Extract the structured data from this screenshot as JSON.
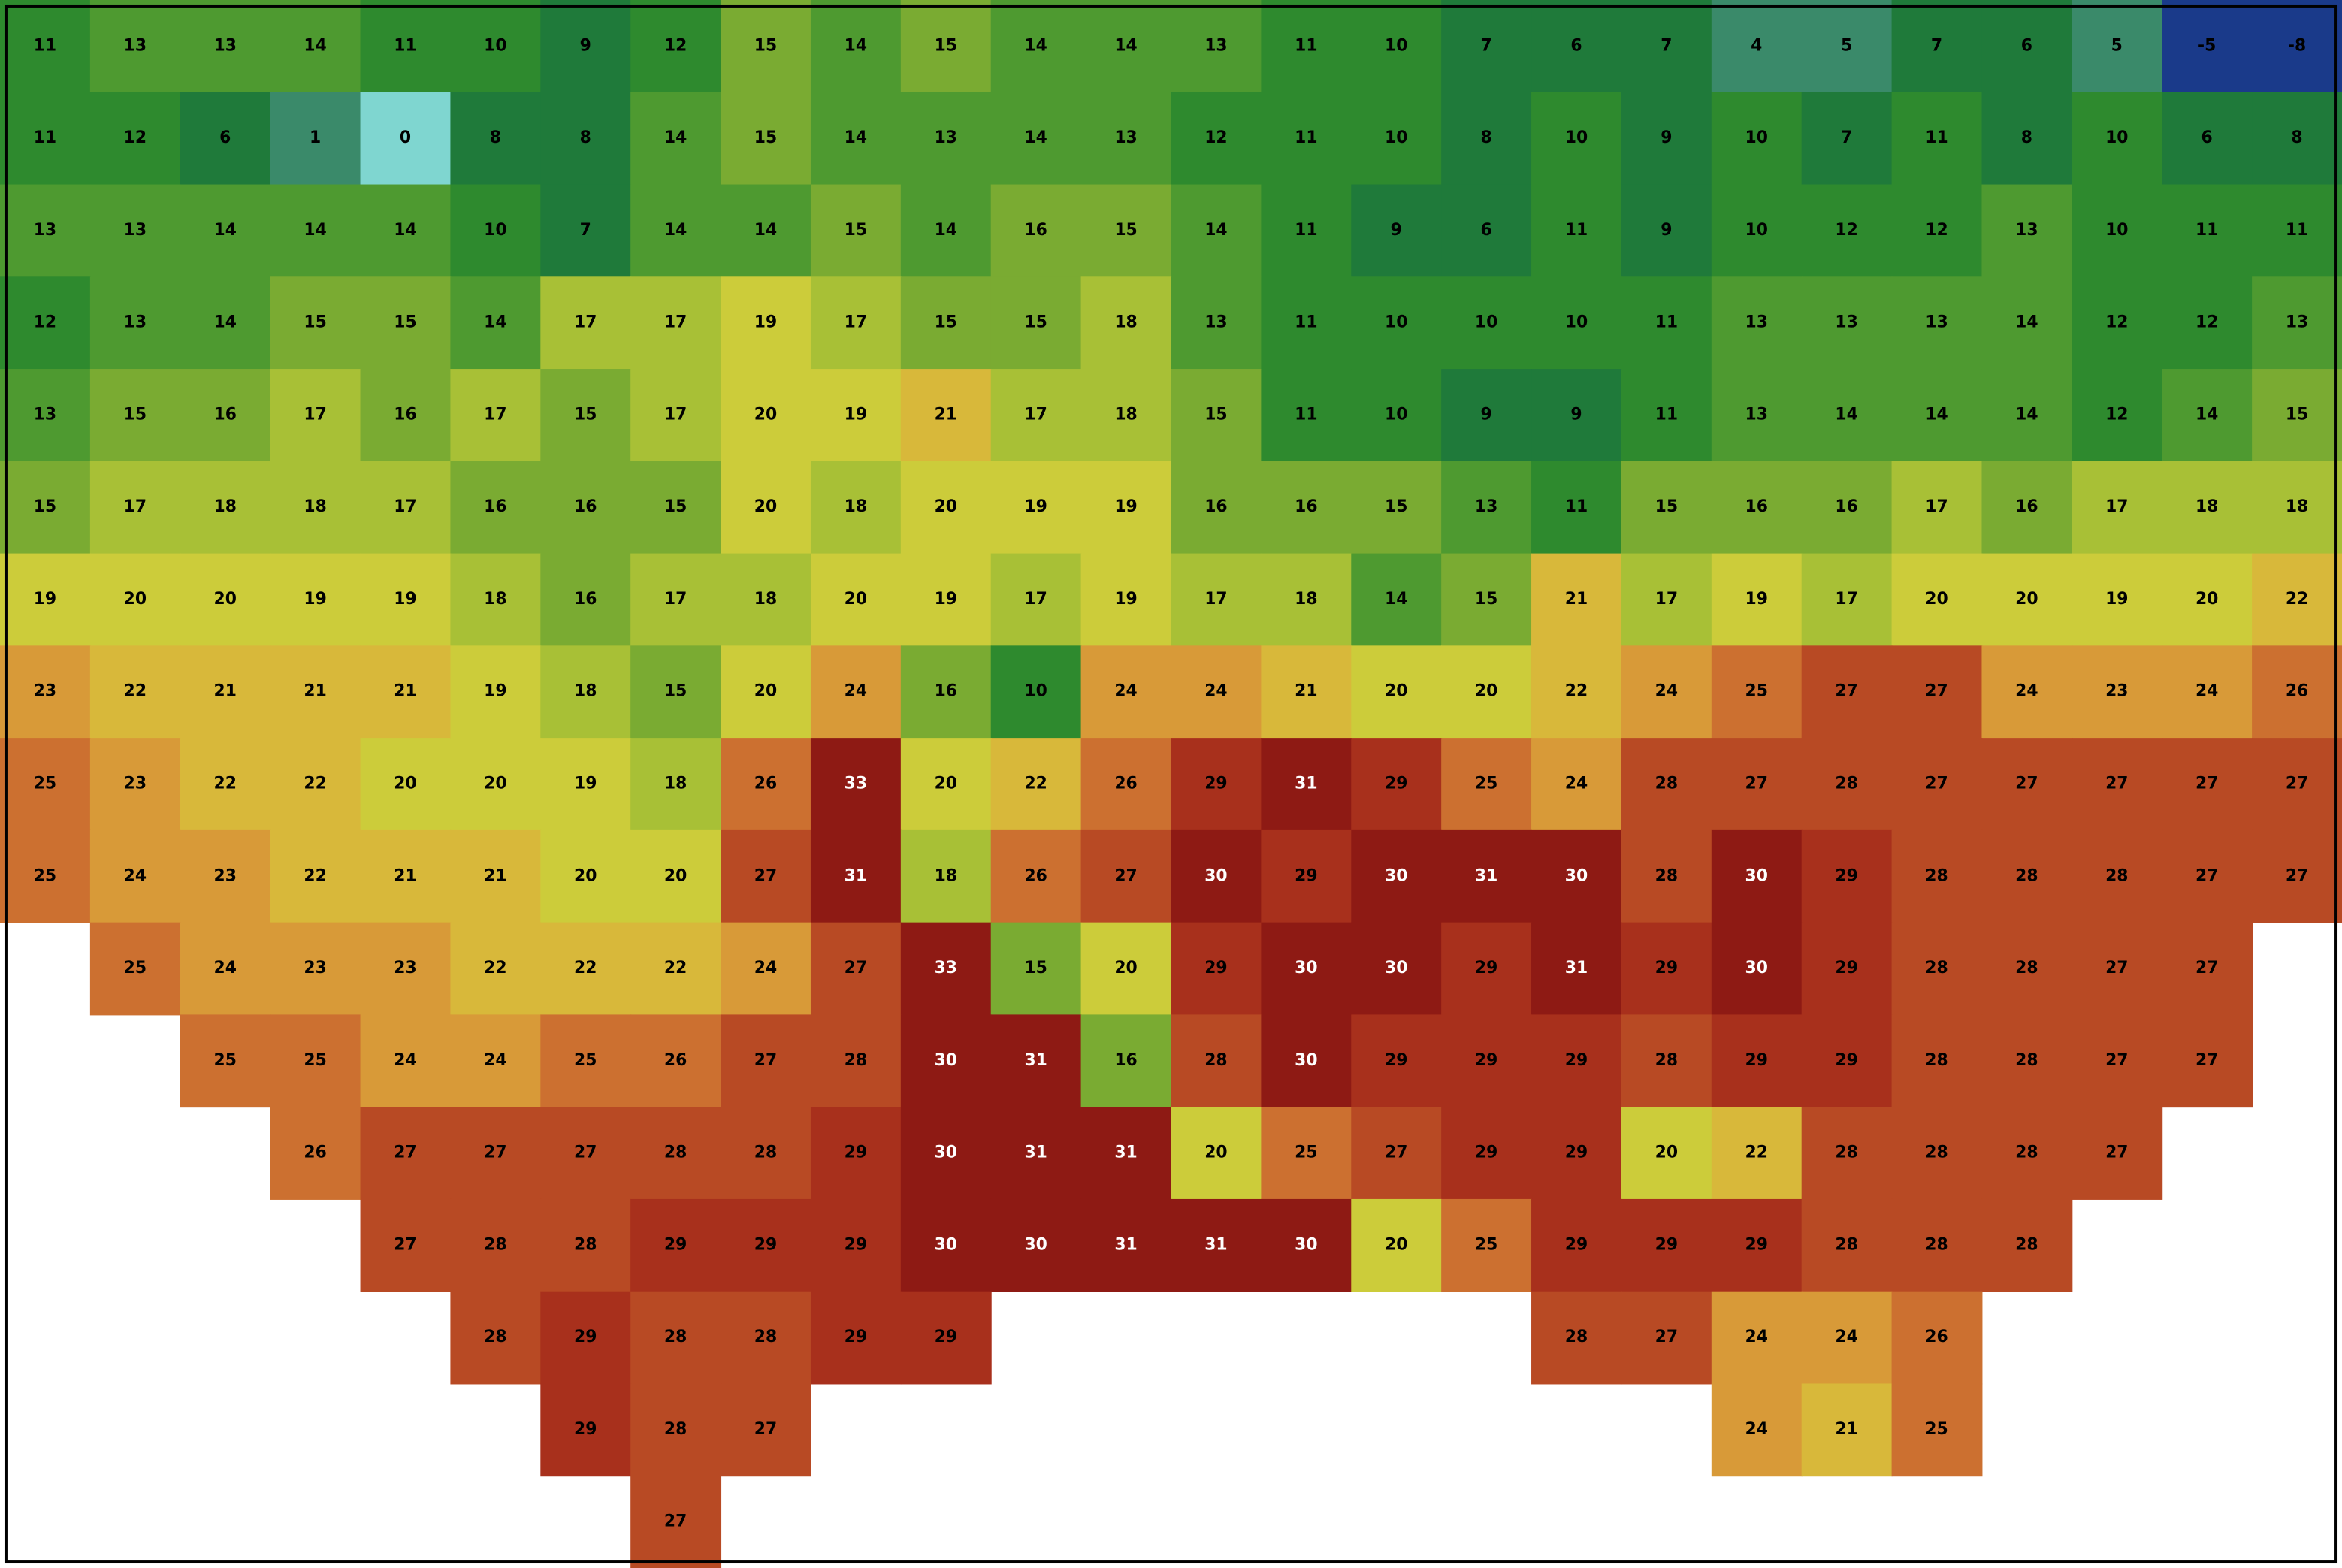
{
  "map": {
    "grid": {
      "rows": [
        [
          11,
          13,
          13,
          14,
          11,
          10,
          9,
          12,
          15,
          14,
          15,
          14,
          14,
          13,
          11,
          10,
          7,
          6,
          7,
          4,
          5,
          7,
          6,
          5,
          -5,
          -8
        ],
        [
          11,
          12,
          6,
          1,
          0,
          8,
          8,
          14,
          15,
          14,
          13,
          14,
          13,
          12,
          11,
          10,
          8,
          10,
          9,
          10,
          7,
          11,
          8,
          10,
          6,
          8
        ],
        [
          13,
          13,
          14,
          14,
          14,
          10,
          7,
          14,
          14,
          15,
          14,
          16,
          15,
          14,
          11,
          9,
          6,
          11,
          9,
          10,
          12,
          12,
          13,
          10,
          11,
          11
        ],
        [
          12,
          13,
          14,
          15,
          15,
          14,
          17,
          17,
          19,
          17,
          15,
          15,
          18,
          13,
          11,
          10,
          10,
          10,
          11,
          13,
          13,
          13,
          14,
          12,
          12,
          13
        ],
        [
          13,
          15,
          16,
          17,
          16,
          17,
          15,
          17,
          20,
          19,
          21,
          17,
          18,
          15,
          11,
          10,
          9,
          9,
          11,
          13,
          14,
          14,
          14,
          12,
          14,
          15
        ],
        [
          15,
          17,
          18,
          18,
          17,
          16,
          16,
          15,
          20,
          18,
          20,
          19,
          19,
          16,
          16,
          15,
          13,
          11,
          15,
          16,
          16,
          17,
          16,
          17,
          18,
          18
        ],
        [
          19,
          20,
          20,
          19,
          19,
          18,
          16,
          17,
          18,
          20,
          19,
          17,
          19,
          17,
          18,
          14,
          15,
          21,
          17,
          19,
          17,
          20,
          20,
          19,
          20,
          22
        ],
        [
          23,
          22,
          21,
          21,
          21,
          19,
          18,
          15,
          20,
          24,
          16,
          10,
          24,
          24,
          21,
          20,
          20,
          22,
          24,
          25,
          27,
          27,
          24,
          23,
          24,
          26
        ],
        [
          25,
          23,
          22,
          22,
          20,
          20,
          19,
          18,
          26,
          33,
          20,
          22,
          26,
          29,
          31,
          29,
          25,
          24,
          28,
          27,
          28,
          27,
          27,
          27,
          27,
          27
        ],
        [
          25,
          24,
          23,
          22,
          21,
          21,
          20,
          20,
          27,
          31,
          18,
          26,
          27,
          30,
          29,
          30,
          31,
          30,
          28,
          30,
          29,
          28,
          28,
          28,
          27,
          27
        ],
        [
          null,
          25,
          24,
          23,
          23,
          22,
          22,
          22,
          24,
          27,
          33,
          15,
          20,
          29,
          30,
          30,
          29,
          31,
          29,
          30,
          29,
          28,
          28,
          27,
          27,
          null
        ],
        [
          null,
          null,
          25,
          25,
          24,
          24,
          25,
          26,
          27,
          28,
          30,
          31,
          16,
          28,
          30,
          29,
          29,
          29,
          28,
          29,
          29,
          28,
          28,
          27,
          27,
          null
        ],
        [
          null,
          null,
          null,
          26,
          27,
          27,
          27,
          28,
          28,
          29,
          30,
          31,
          31,
          20,
          25,
          27,
          29,
          29,
          20,
          22,
          28,
          28,
          28,
          27,
          null,
          null
        ],
        [
          null,
          null,
          null,
          null,
          27,
          28,
          28,
          29,
          29,
          29,
          30,
          30,
          31,
          31,
          30,
          20,
          25,
          29,
          29,
          29,
          28,
          28,
          28,
          null,
          null,
          null
        ],
        [
          null,
          null,
          null,
          null,
          null,
          28,
          29,
          28,
          28,
          29,
          29,
          null,
          null,
          null,
          null,
          null,
          null,
          28,
          27,
          24,
          24,
          26,
          null,
          null,
          null,
          null
        ],
        [
          null,
          null,
          null,
          null,
          null,
          null,
          29,
          28,
          27,
          null,
          null,
          null,
          null,
          null,
          null,
          null,
          null,
          null,
          null,
          24,
          21,
          25,
          null,
          null,
          null,
          null
        ],
        [
          null,
          null,
          null,
          null,
          null,
          null,
          null,
          27,
          null,
          null,
          null,
          null,
          null,
          null,
          null,
          null,
          null,
          null,
          null,
          null,
          null,
          null,
          null,
          null,
          null,
          null
        ]
      ]
    }
  }
}
